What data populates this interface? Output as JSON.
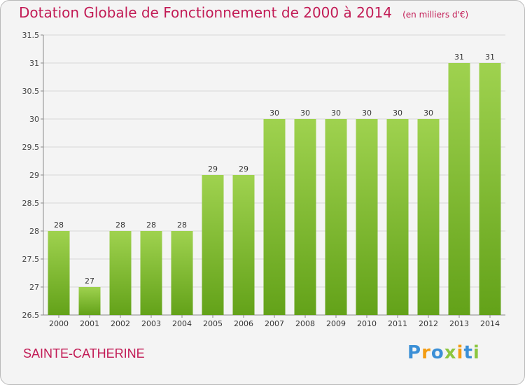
{
  "chart_data": {
    "type": "bar",
    "title": "Dotation Globale de Fonctionnement de 2000 à 2014",
    "unit": "(en milliers d'€)",
    "categories": [
      "2000",
      "2001",
      "2002",
      "2003",
      "2004",
      "2005",
      "2006",
      "2007",
      "2008",
      "2009",
      "2010",
      "2011",
      "2012",
      "2013",
      "2014"
    ],
    "values": [
      28,
      27,
      28,
      28,
      28,
      29,
      29,
      30,
      30,
      30,
      30,
      30,
      30,
      31,
      31
    ],
    "value_labels": [
      "28",
      "27",
      "28",
      "28",
      "28",
      "29",
      "29",
      "30",
      "30",
      "30",
      "30",
      "30",
      "30",
      "31",
      "31"
    ],
    "ylim": [
      26.5,
      31.5
    ],
    "yticks": [
      "26.5",
      "27",
      "27.5",
      "28",
      "28.5",
      "29",
      "29.5",
      "30",
      "30.5",
      "31",
      "31.5"
    ],
    "grid": true,
    "bar_color": "#8cc63f"
  },
  "commune": "SAINTE-CATHERINE",
  "brand": {
    "letters": [
      "P",
      "r",
      "o",
      "x",
      "i",
      "t",
      "i"
    ],
    "colors": [
      "#3b8fd6",
      "#f39c12",
      "#3b8fd6",
      "#8cc63f",
      "#f39c12",
      "#3b8fd6",
      "#8cc63f"
    ]
  }
}
